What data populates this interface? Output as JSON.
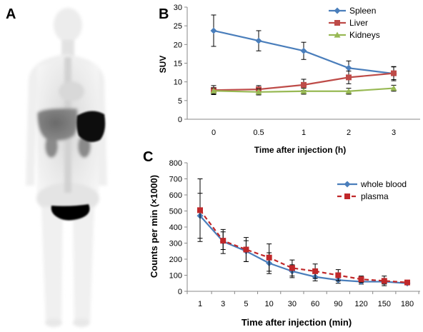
{
  "panels": {
    "a": {
      "letter": "A"
    },
    "b": {
      "letter": "B"
    },
    "c": {
      "letter": "C"
    }
  },
  "chart_data": [
    {
      "panel": "B",
      "type": "line",
      "categories": [
        "0",
        "0.5",
        "1",
        "2",
        "3"
      ],
      "xlabel": "Time after injection (h)",
      "ylabel": "SUV",
      "ylim": [
        0,
        30
      ],
      "yticks": [
        0,
        5,
        10,
        15,
        20,
        25,
        30
      ],
      "grid": false,
      "legend": "top-right",
      "series": [
        {
          "name": "Spleen",
          "color": "#4A7EBB",
          "marker": "diamond",
          "values": [
            23.7,
            21.0,
            18.3,
            13.7,
            12.2
          ],
          "errors": [
            4.2,
            2.7,
            2.3,
            1.9,
            1.9
          ]
        },
        {
          "name": "Liver",
          "color": "#BE4B48",
          "marker": "square",
          "values": [
            7.8,
            8.0,
            9.2,
            11.2,
            12.3
          ],
          "errors": [
            1.2,
            1.0,
            1.5,
            1.7,
            1.7
          ]
        },
        {
          "name": "Kidneys",
          "color": "#98B954",
          "marker": "triangle",
          "values": [
            7.6,
            7.3,
            7.5,
            7.5,
            8.3
          ],
          "errors": [
            0.8,
            0.8,
            0.8,
            0.8,
            0.8
          ]
        }
      ]
    },
    {
      "panel": "C",
      "type": "line",
      "categories": [
        "1",
        "3",
        "5",
        "10",
        "30",
        "60",
        "90",
        "120",
        "150",
        "180"
      ],
      "xlabel": "Time after injection (min)",
      "ylabel": "Counts per min (×1000)",
      "ylim": [
        0,
        800
      ],
      "yticks": [
        0,
        100,
        200,
        300,
        400,
        500,
        600,
        700,
        800
      ],
      "grid": false,
      "legend": "top-right",
      "series": [
        {
          "name": "whole blood",
          "color": "#4A7EBB",
          "marker": "diamond",
          "dash": false,
          "values": [
            470,
            310,
            250,
            175,
            125,
            90,
            70,
            60,
            60,
            50
          ],
          "errors": [
            140,
            75,
            65,
            65,
            40,
            25,
            20,
            15,
            15,
            10
          ]
        },
        {
          "name": "plasma",
          "color": "#C0282A",
          "marker": "square",
          "dash": true,
          "values": [
            505,
            315,
            260,
            210,
            145,
            125,
            100,
            75,
            65,
            55
          ],
          "errors": [
            195,
            55,
            75,
            85,
            50,
            45,
            35,
            20,
            30,
            10
          ]
        }
      ]
    }
  ]
}
